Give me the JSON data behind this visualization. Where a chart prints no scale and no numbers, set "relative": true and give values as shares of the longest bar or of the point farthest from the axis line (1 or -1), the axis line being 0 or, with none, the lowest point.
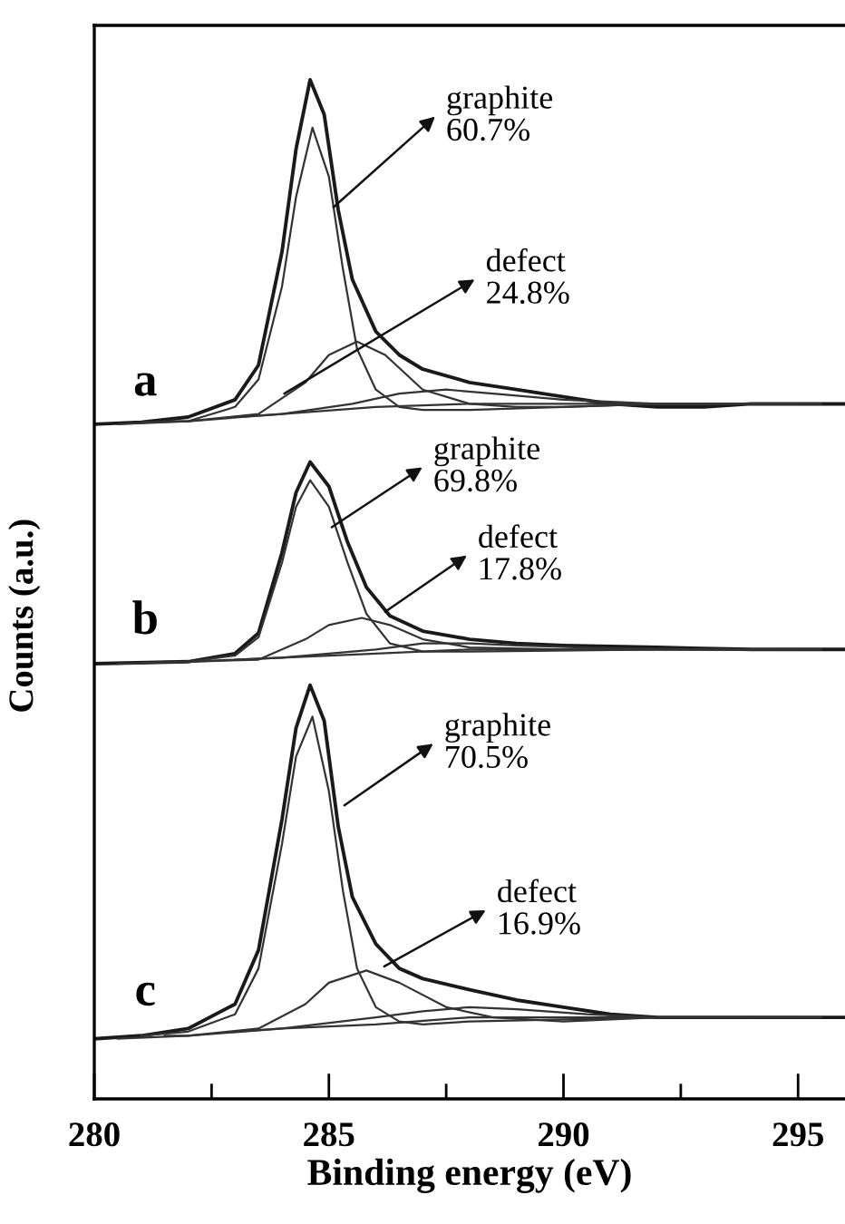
{
  "chart_data": {
    "type": "line",
    "relative": true,
    "xlim": [
      280,
      296
    ],
    "tick_labels": "x",
    "xlabel": "Binding energy (eV)",
    "ylabel": "Counts (a.u.)",
    "xticks": [
      280,
      {
        "value": 282.5,
        "label": null
      },
      285,
      {
        "value": 287.5,
        "label": null
      },
      290,
      {
        "value": 292.5,
        "label": null
      },
      295
    ],
    "series": [
      {
        "color": "#1a1a1a",
        "x": [
          280,
          281,
          282,
          283,
          283.5,
          284,
          284.3,
          284.6,
          284.9,
          285.2,
          285.5,
          286,
          286.5,
          287,
          288,
          289,
          290,
          291,
          292,
          293,
          294,
          295,
          296
        ],
        "values": [
          0.662,
          0.664,
          0.669,
          0.686,
          0.72,
          0.831,
          0.932,
          1.0,
          0.966,
          0.872,
          0.804,
          0.753,
          0.73,
          0.716,
          0.703,
          0.696,
          0.689,
          0.682,
          0.679,
          0.679,
          0.682,
          0.682,
          0.682
        ]
      },
      {
        "color": "#333333",
        "x": [
          281,
          282,
          283,
          283.5,
          284,
          284.3,
          284.65,
          285,
          285.3,
          285.6,
          286,
          286.5,
          287,
          288,
          290,
          292,
          294
        ],
        "values": [
          0.664,
          0.665,
          0.679,
          0.706,
          0.797,
          0.885,
          0.953,
          0.905,
          0.814,
          0.736,
          0.696,
          0.679,
          0.676,
          0.676,
          0.679,
          0.682,
          0.682
        ]
      },
      {
        "color": "#333333",
        "x": [
          281.5,
          282,
          283.5,
          284.5,
          285,
          285.6,
          286.2,
          287,
          288,
          289,
          290,
          292,
          294.5
        ],
        "values": [
          0.665,
          0.665,
          0.672,
          0.703,
          0.73,
          0.743,
          0.73,
          0.696,
          0.682,
          0.679,
          0.679,
          0.682,
          0.682
        ]
      },
      {
        "color": "#333333",
        "x": [
          283,
          284,
          285.5,
          286.5,
          287.5,
          288.5,
          290,
          292,
          295
        ],
        "values": [
          0.669,
          0.672,
          0.682,
          0.692,
          0.696,
          0.692,
          0.686,
          0.682,
          0.682
        ]
      },
      {
        "color": "#333333",
        "x": [
          280.5,
          282,
          284,
          286,
          288,
          292,
          295.5
        ],
        "values": [
          0.662,
          0.665,
          0.672,
          0.679,
          0.682,
          0.682,
          0.682
        ]
      },
      {
        "color": "#1a1a1a",
        "x": [
          280,
          282,
          283,
          283.5,
          284,
          284.3,
          284.6,
          285,
          285.4,
          285.8,
          286.3,
          287,
          288,
          289,
          290,
          292,
          294,
          296
        ],
        "values": [
          0.427,
          0.429,
          0.437,
          0.457,
          0.536,
          0.595,
          0.625,
          0.601,
          0.546,
          0.502,
          0.474,
          0.459,
          0.451,
          0.447,
          0.445,
          0.443,
          0.441,
          0.441
        ]
      },
      {
        "color": "#333333",
        "x": [
          281,
          282,
          283,
          283.5,
          284,
          284.3,
          284.6,
          285,
          285.4,
          285.8,
          286.3,
          287,
          288,
          292,
          294
        ],
        "values": [
          0.428,
          0.429,
          0.435,
          0.453,
          0.526,
          0.581,
          0.607,
          0.581,
          0.526,
          0.476,
          0.447,
          0.439,
          0.439,
          0.441,
          0.441
        ]
      },
      {
        "color": "#333333",
        "x": [
          281.5,
          282,
          283.5,
          284.5,
          285,
          285.7,
          286.3,
          287,
          288,
          290,
          294.5
        ],
        "values": [
          0.429,
          0.429,
          0.431,
          0.451,
          0.465,
          0.472,
          0.465,
          0.451,
          0.443,
          0.441,
          0.441
        ]
      },
      {
        "color": "#333333",
        "x": [
          283,
          284,
          286,
          287,
          288,
          289,
          291,
          293,
          295
        ],
        "values": [
          0.431,
          0.433,
          0.441,
          0.447,
          0.447,
          0.445,
          0.442,
          0.441,
          0.441
        ]
      },
      {
        "color": "#333333",
        "x": [
          280.5,
          282,
          284,
          286,
          288,
          295.5
        ],
        "values": [
          0.427,
          0.429,
          0.433,
          0.437,
          0.441,
          0.441
        ]
      },
      {
        "color": "#1a1a1a",
        "x": [
          280,
          281,
          282,
          283,
          283.5,
          284,
          284.3,
          284.6,
          284.9,
          285.2,
          285.5,
          286,
          286.5,
          287,
          288,
          289,
          290,
          291,
          292,
          294,
          296
        ],
        "values": [
          0.059,
          0.062,
          0.069,
          0.093,
          0.146,
          0.274,
          0.364,
          0.406,
          0.371,
          0.267,
          0.198,
          0.152,
          0.128,
          0.118,
          0.107,
          0.097,
          0.09,
          0.083,
          0.08,
          0.08,
          0.08
        ]
      },
      {
        "color": "#333333",
        "x": [
          281,
          282,
          283,
          283.5,
          284,
          284.3,
          284.65,
          285,
          285.3,
          285.6,
          286,
          286.5,
          287,
          288,
          292,
          294
        ],
        "values": [
          0.062,
          0.066,
          0.083,
          0.128,
          0.25,
          0.336,
          0.375,
          0.302,
          0.204,
          0.128,
          0.09,
          0.076,
          0.073,
          0.076,
          0.08,
          0.08
        ]
      },
      {
        "color": "#333333",
        "x": [
          281.5,
          282,
          283.5,
          284.5,
          285,
          285.8,
          286.5,
          287.5,
          288.5,
          290,
          292,
          294.5
        ],
        "values": [
          0.062,
          0.062,
          0.069,
          0.093,
          0.114,
          0.126,
          0.114,
          0.09,
          0.08,
          0.076,
          0.08,
          0.08
        ]
      },
      {
        "color": "#333333",
        "x": [
          283,
          284,
          286,
          287,
          288,
          289,
          290.5,
          292,
          295
        ],
        "values": [
          0.066,
          0.069,
          0.08,
          0.086,
          0.09,
          0.088,
          0.083,
          0.08,
          0.08
        ]
      },
      {
        "color": "#333333",
        "x": [
          280.5,
          282,
          284,
          286,
          288,
          295.5
        ],
        "values": [
          0.059,
          0.062,
          0.069,
          0.073,
          0.08,
          0.08
        ]
      }
    ],
    "annotations": [
      "a",
      "b",
      "c",
      {
        "text": "graphite\n60.7%",
        "x": 285.1,
        "y": 0.875
      },
      {
        "text": "defect\n24.8%",
        "x": 284.05,
        "y": 0.692
      },
      {
        "text": "graphite\n69.8%",
        "x": 285.06,
        "y": 0.561
      },
      {
        "text": "defect\n17.8%",
        "x": 286.2,
        "y": 0.478
      },
      {
        "text": "graphite\n70.5%",
        "x": 285.33,
        "y": 0.288
      },
      {
        "text": "defect\n16.9%",
        "x": 286.18,
        "y": 0.13
      }
    ]
  }
}
